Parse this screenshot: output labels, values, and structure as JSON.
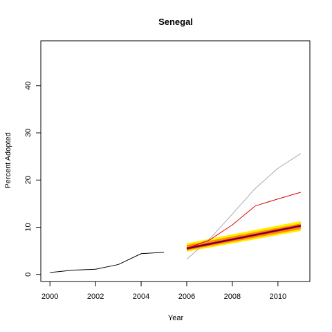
{
  "chart_data": {
    "type": "line",
    "title": "Senegal",
    "xlabel": "Year",
    "ylabel": "Percent Adopted",
    "xlim": [
      1999.6,
      2011.4
    ],
    "ylim": [
      -1.5,
      49.5
    ],
    "x_ticks": [
      2000,
      2002,
      2004,
      2006,
      2008,
      2010
    ],
    "y_ticks": [
      0,
      10,
      20,
      30,
      40
    ],
    "grid": false,
    "colors": {
      "observed": "#000000",
      "forecast_upper": "#aaaaaa",
      "forecast_red": "#dd0000",
      "band_outer": "#ffee00",
      "band_inner": "#ff8c00",
      "trend": "#0000aa",
      "trend_red": "#dd0000"
    },
    "bands": [
      {
        "x": [
          2006,
          2011
        ],
        "lower": [
          4.8,
          9.2
        ],
        "upper": [
          6.6,
          11.3
        ],
        "color": "#ffee00"
      },
      {
        "x": [
          2006,
          2011
        ],
        "lower": [
          5.1,
          9.6
        ],
        "upper": [
          6.2,
          10.8
        ],
        "color": "#ff8c00"
      }
    ],
    "series": [
      {
        "x": [
          2000,
          2001,
          2002,
          2003,
          2004,
          2005
        ],
        "values": [
          0.4,
          0.9,
          1.1,
          2.1,
          4.4,
          4.7
        ],
        "color": "#000000",
        "width": 1
      },
      {
        "x": [
          2006,
          2007,
          2008,
          2009,
          2010,
          2011
        ],
        "values": [
          3.2,
          7.5,
          12.8,
          18.2,
          22.5,
          25.6
        ],
        "color": "#aaaaaa",
        "width": 1
      },
      {
        "x": [
          2006,
          2007,
          2008,
          2009,
          2010,
          2011
        ],
        "values": [
          5.5,
          7.3,
          10.5,
          14.5,
          16.0,
          17.4
        ],
        "color": "#dd0000",
        "width": 1
      },
      {
        "x": [
          2006,
          2011
        ],
        "values": [
          5.5,
          10.3
        ],
        "color": "#dd0000",
        "width": 3
      },
      {
        "x": [
          2006,
          2011
        ],
        "values": [
          5.5,
          10.3
        ],
        "color": "#0000aa",
        "width": 1
      }
    ]
  }
}
